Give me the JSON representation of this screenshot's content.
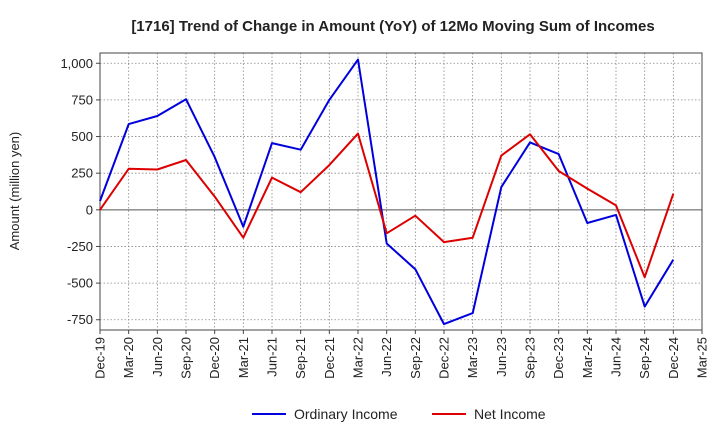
{
  "chart_data": {
    "type": "line",
    "title": "[1716]  Trend of Change in Amount (YoY) of 12Mo Moving Sum of Incomes",
    "ylabel": "Amount (million yen)",
    "xlabel": "",
    "ylim": [
      -820,
      1070
    ],
    "yticks": [
      1000,
      750,
      500,
      250,
      0,
      -250,
      -500,
      -750
    ],
    "ytick_labels": [
      "1,000",
      "750",
      "500",
      "250",
      "0",
      "-250",
      "-500",
      "-750"
    ],
    "x_tick_labels": [
      "Dec-19",
      "Mar-20",
      "Jun-20",
      "Sep-20",
      "Dec-20",
      "Mar-21",
      "Jun-21",
      "Sep-21",
      "Dec-21",
      "Mar-22",
      "Jun-22",
      "Sep-22",
      "Dec-22",
      "Mar-23",
      "Jun-23",
      "Sep-23",
      "Dec-23",
      "Mar-24",
      "Jun-24",
      "Sep-24",
      "Dec-24",
      "Mar-25"
    ],
    "grid": true,
    "legend_position": "bottom",
    "series": [
      {
        "name": "Ordinary Income",
        "color": "#0000dd",
        "values": [
          60,
          585,
          640,
          755,
          360,
          -115,
          455,
          410,
          750,
          1025,
          -230,
          -405,
          -780,
          -705,
          155,
          460,
          380,
          -90,
          -35,
          -660,
          -340
        ]
      },
      {
        "name": "Net Income",
        "color": "#dd0000",
        "values": [
          0,
          280,
          275,
          340,
          90,
          -190,
          220,
          120,
          305,
          520,
          -160,
          -40,
          -220,
          -190,
          370,
          515,
          265,
          145,
          30,
          -460,
          110
        ]
      }
    ]
  }
}
